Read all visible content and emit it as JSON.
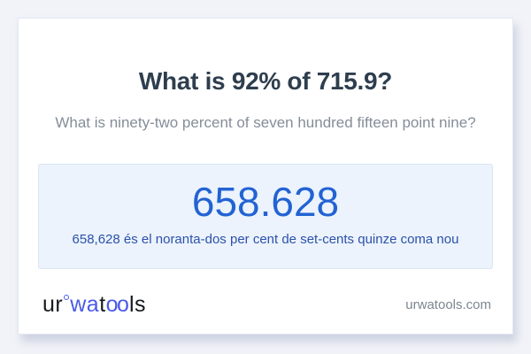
{
  "question": {
    "title": "What is 92% of 715.9?",
    "subtitle": "What is ninety-two percent of seven hundred fifteen point nine?"
  },
  "answer": {
    "value": "658.628",
    "sentence": "658,628 és el noranta-dos per cent de set-cents quinze coma nou"
  },
  "footer": {
    "logo": {
      "seg1": "ur",
      "seg2": "wa",
      "seg3": "t",
      "seg4": "oo",
      "seg5": "ls"
    },
    "domain": "urwatools.com"
  },
  "colors": {
    "page_bg": "#f1f3f8",
    "card_bg": "#ffffff",
    "card_border": "#e4e7f4",
    "title_text": "#2e3e4e",
    "subtitle_text": "#848e99",
    "answer_box_bg": "#ecf3fd",
    "answer_box_border": "#d9e6f3",
    "answer_value_text": "#2263d3",
    "answer_sentence_text": "#2c51a9",
    "logo_blue": "#4a5ae8",
    "logo_black": "#17191c",
    "domain_text": "#7d8691"
  }
}
